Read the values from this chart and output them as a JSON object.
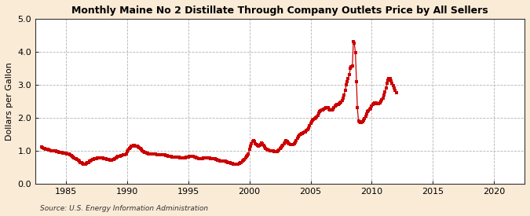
{
  "title": "Monthly Maine No 2 Distillate Through Company Outlets Price by All Sellers",
  "ylabel": "Dollars per Gallon",
  "source": "Source: U.S. Energy Information Administration",
  "bg_outer": "#faebd7",
  "bg_inner": "#ffffff",
  "line_color": "#cc0000",
  "xlim": [
    1982.5,
    2022.5
  ],
  "ylim": [
    0.0,
    5.0
  ],
  "yticks": [
    0.0,
    1.0,
    2.0,
    3.0,
    4.0,
    5.0
  ],
  "xticks": [
    1985,
    1990,
    1995,
    2000,
    2005,
    2010,
    2015,
    2020
  ],
  "data": [
    [
      1983.0,
      1.12
    ],
    [
      1983.08,
      1.1
    ],
    [
      1983.17,
      1.08
    ],
    [
      1983.25,
      1.06
    ],
    [
      1983.33,
      1.05
    ],
    [
      1983.42,
      1.04
    ],
    [
      1983.5,
      1.04
    ],
    [
      1983.58,
      1.03
    ],
    [
      1983.67,
      1.02
    ],
    [
      1983.75,
      1.01
    ],
    [
      1983.83,
      1.0
    ],
    [
      1983.92,
      1.0
    ],
    [
      1984.0,
      1.0
    ],
    [
      1984.08,
      1.0
    ],
    [
      1984.17,
      0.99
    ],
    [
      1984.25,
      0.98
    ],
    [
      1984.33,
      0.97
    ],
    [
      1984.42,
      0.96
    ],
    [
      1984.5,
      0.95
    ],
    [
      1984.58,
      0.95
    ],
    [
      1984.67,
      0.94
    ],
    [
      1984.75,
      0.93
    ],
    [
      1984.83,
      0.93
    ],
    [
      1984.92,
      0.92
    ],
    [
      1985.0,
      0.92
    ],
    [
      1985.08,
      0.91
    ],
    [
      1985.17,
      0.91
    ],
    [
      1985.25,
      0.9
    ],
    [
      1985.33,
      0.88
    ],
    [
      1985.42,
      0.86
    ],
    [
      1985.5,
      0.83
    ],
    [
      1985.58,
      0.81
    ],
    [
      1985.67,
      0.79
    ],
    [
      1985.75,
      0.77
    ],
    [
      1985.83,
      0.75
    ],
    [
      1985.92,
      0.73
    ],
    [
      1986.0,
      0.71
    ],
    [
      1986.08,
      0.68
    ],
    [
      1986.17,
      0.65
    ],
    [
      1986.25,
      0.63
    ],
    [
      1986.33,
      0.61
    ],
    [
      1986.42,
      0.6
    ],
    [
      1986.5,
      0.6
    ],
    [
      1986.58,
      0.6
    ],
    [
      1986.67,
      0.61
    ],
    [
      1986.75,
      0.63
    ],
    [
      1986.83,
      0.65
    ],
    [
      1986.92,
      0.68
    ],
    [
      1987.0,
      0.7
    ],
    [
      1987.08,
      0.72
    ],
    [
      1987.17,
      0.73
    ],
    [
      1987.25,
      0.74
    ],
    [
      1987.33,
      0.75
    ],
    [
      1987.42,
      0.76
    ],
    [
      1987.5,
      0.77
    ],
    [
      1987.58,
      0.78
    ],
    [
      1987.67,
      0.78
    ],
    [
      1987.75,
      0.78
    ],
    [
      1987.83,
      0.78
    ],
    [
      1987.92,
      0.78
    ],
    [
      1988.0,
      0.78
    ],
    [
      1988.08,
      0.77
    ],
    [
      1988.17,
      0.76
    ],
    [
      1988.25,
      0.75
    ],
    [
      1988.33,
      0.74
    ],
    [
      1988.42,
      0.73
    ],
    [
      1988.5,
      0.73
    ],
    [
      1988.58,
      0.72
    ],
    [
      1988.67,
      0.72
    ],
    [
      1988.75,
      0.72
    ],
    [
      1988.83,
      0.73
    ],
    [
      1988.92,
      0.74
    ],
    [
      1989.0,
      0.76
    ],
    [
      1989.08,
      0.78
    ],
    [
      1989.17,
      0.8
    ],
    [
      1989.25,
      0.82
    ],
    [
      1989.33,
      0.83
    ],
    [
      1989.42,
      0.84
    ],
    [
      1989.5,
      0.85
    ],
    [
      1989.58,
      0.86
    ],
    [
      1989.67,
      0.87
    ],
    [
      1989.75,
      0.88
    ],
    [
      1989.83,
      0.89
    ],
    [
      1989.92,
      0.91
    ],
    [
      1990.0,
      0.97
    ],
    [
      1990.08,
      1.02
    ],
    [
      1990.17,
      1.07
    ],
    [
      1990.25,
      1.1
    ],
    [
      1990.33,
      1.13
    ],
    [
      1990.42,
      1.15
    ],
    [
      1990.5,
      1.16
    ],
    [
      1990.58,
      1.16
    ],
    [
      1990.67,
      1.15
    ],
    [
      1990.75,
      1.14
    ],
    [
      1990.83,
      1.13
    ],
    [
      1990.92,
      1.12
    ],
    [
      1991.0,
      1.1
    ],
    [
      1991.08,
      1.07
    ],
    [
      1991.17,
      1.04
    ],
    [
      1991.25,
      1.01
    ],
    [
      1991.33,
      0.98
    ],
    [
      1991.42,
      0.96
    ],
    [
      1991.5,
      0.94
    ],
    [
      1991.58,
      0.93
    ],
    [
      1991.67,
      0.92
    ],
    [
      1991.75,
      0.91
    ],
    [
      1991.83,
      0.91
    ],
    [
      1991.92,
      0.91
    ],
    [
      1992.0,
      0.91
    ],
    [
      1992.08,
      0.91
    ],
    [
      1992.17,
      0.91
    ],
    [
      1992.25,
      0.91
    ],
    [
      1992.33,
      0.9
    ],
    [
      1992.42,
      0.89
    ],
    [
      1992.5,
      0.89
    ],
    [
      1992.58,
      0.88
    ],
    [
      1992.67,
      0.88
    ],
    [
      1992.75,
      0.88
    ],
    [
      1992.83,
      0.88
    ],
    [
      1992.92,
      0.88
    ],
    [
      1993.0,
      0.88
    ],
    [
      1993.08,
      0.87
    ],
    [
      1993.17,
      0.86
    ],
    [
      1993.25,
      0.85
    ],
    [
      1993.33,
      0.84
    ],
    [
      1993.42,
      0.83
    ],
    [
      1993.5,
      0.82
    ],
    [
      1993.58,
      0.82
    ],
    [
      1993.67,
      0.81
    ],
    [
      1993.75,
      0.81
    ],
    [
      1993.83,
      0.81
    ],
    [
      1993.92,
      0.81
    ],
    [
      1994.0,
      0.81
    ],
    [
      1994.08,
      0.8
    ],
    [
      1994.17,
      0.8
    ],
    [
      1994.25,
      0.8
    ],
    [
      1994.33,
      0.79
    ],
    [
      1994.42,
      0.79
    ],
    [
      1994.5,
      0.79
    ],
    [
      1994.58,
      0.79
    ],
    [
      1994.67,
      0.79
    ],
    [
      1994.75,
      0.79
    ],
    [
      1994.83,
      0.8
    ],
    [
      1994.92,
      0.8
    ],
    [
      1995.0,
      0.81
    ],
    [
      1995.08,
      0.82
    ],
    [
      1995.17,
      0.83
    ],
    [
      1995.25,
      0.83
    ],
    [
      1995.33,
      0.83
    ],
    [
      1995.42,
      0.82
    ],
    [
      1995.5,
      0.81
    ],
    [
      1995.58,
      0.8
    ],
    [
      1995.67,
      0.79
    ],
    [
      1995.75,
      0.78
    ],
    [
      1995.83,
      0.77
    ],
    [
      1995.92,
      0.76
    ],
    [
      1996.0,
      0.76
    ],
    [
      1996.08,
      0.76
    ],
    [
      1996.17,
      0.77
    ],
    [
      1996.25,
      0.78
    ],
    [
      1996.33,
      0.79
    ],
    [
      1996.42,
      0.79
    ],
    [
      1996.5,
      0.79
    ],
    [
      1996.58,
      0.79
    ],
    [
      1996.67,
      0.79
    ],
    [
      1996.75,
      0.78
    ],
    [
      1996.83,
      0.77
    ],
    [
      1996.92,
      0.76
    ],
    [
      1997.0,
      0.76
    ],
    [
      1997.08,
      0.75
    ],
    [
      1997.17,
      0.75
    ],
    [
      1997.25,
      0.74
    ],
    [
      1997.33,
      0.73
    ],
    [
      1997.42,
      0.72
    ],
    [
      1997.5,
      0.71
    ],
    [
      1997.58,
      0.7
    ],
    [
      1997.67,
      0.7
    ],
    [
      1997.75,
      0.69
    ],
    [
      1997.83,
      0.69
    ],
    [
      1997.92,
      0.69
    ],
    [
      1998.0,
      0.68
    ],
    [
      1998.08,
      0.67
    ],
    [
      1998.17,
      0.66
    ],
    [
      1998.25,
      0.65
    ],
    [
      1998.33,
      0.64
    ],
    [
      1998.42,
      0.63
    ],
    [
      1998.5,
      0.62
    ],
    [
      1998.58,
      0.61
    ],
    [
      1998.67,
      0.6
    ],
    [
      1998.75,
      0.6
    ],
    [
      1998.83,
      0.6
    ],
    [
      1998.92,
      0.6
    ],
    [
      1999.0,
      0.6
    ],
    [
      1999.08,
      0.6
    ],
    [
      1999.17,
      0.61
    ],
    [
      1999.25,
      0.63
    ],
    [
      1999.33,
      0.65
    ],
    [
      1999.42,
      0.68
    ],
    [
      1999.5,
      0.71
    ],
    [
      1999.58,
      0.74
    ],
    [
      1999.67,
      0.78
    ],
    [
      1999.75,
      0.82
    ],
    [
      1999.83,
      0.86
    ],
    [
      1999.92,
      0.9
    ],
    [
      2000.0,
      1.04
    ],
    [
      2000.08,
      1.13
    ],
    [
      2000.17,
      1.22
    ],
    [
      2000.25,
      1.28
    ],
    [
      2000.33,
      1.3
    ],
    [
      2000.42,
      1.28
    ],
    [
      2000.5,
      1.22
    ],
    [
      2000.58,
      1.18
    ],
    [
      2000.67,
      1.16
    ],
    [
      2000.75,
      1.15
    ],
    [
      2000.83,
      1.16
    ],
    [
      2000.92,
      1.2
    ],
    [
      2001.0,
      1.24
    ],
    [
      2001.08,
      1.21
    ],
    [
      2001.17,
      1.17
    ],
    [
      2001.25,
      1.12
    ],
    [
      2001.33,
      1.08
    ],
    [
      2001.42,
      1.05
    ],
    [
      2001.5,
      1.03
    ],
    [
      2001.58,
      1.02
    ],
    [
      2001.67,
      1.01
    ],
    [
      2001.75,
      1.01
    ],
    [
      2001.83,
      1.0
    ],
    [
      2001.92,
      0.99
    ],
    [
      2002.0,
      0.98
    ],
    [
      2002.08,
      0.97
    ],
    [
      2002.17,
      0.97
    ],
    [
      2002.25,
      0.98
    ],
    [
      2002.33,
      1.0
    ],
    [
      2002.42,
      1.03
    ],
    [
      2002.5,
      1.06
    ],
    [
      2002.58,
      1.09
    ],
    [
      2002.67,
      1.13
    ],
    [
      2002.75,
      1.17
    ],
    [
      2002.83,
      1.21
    ],
    [
      2002.92,
      1.26
    ],
    [
      2003.0,
      1.31
    ],
    [
      2003.08,
      1.28
    ],
    [
      2003.17,
      1.24
    ],
    [
      2003.25,
      1.21
    ],
    [
      2003.33,
      1.19
    ],
    [
      2003.42,
      1.18
    ],
    [
      2003.5,
      1.18
    ],
    [
      2003.58,
      1.19
    ],
    [
      2003.67,
      1.22
    ],
    [
      2003.75,
      1.26
    ],
    [
      2003.83,
      1.31
    ],
    [
      2003.92,
      1.37
    ],
    [
      2004.0,
      1.43
    ],
    [
      2004.08,
      1.47
    ],
    [
      2004.17,
      1.5
    ],
    [
      2004.25,
      1.52
    ],
    [
      2004.33,
      1.53
    ],
    [
      2004.42,
      1.54
    ],
    [
      2004.5,
      1.56
    ],
    [
      2004.58,
      1.58
    ],
    [
      2004.67,
      1.61
    ],
    [
      2004.75,
      1.65
    ],
    [
      2004.83,
      1.7
    ],
    [
      2004.92,
      1.76
    ],
    [
      2005.0,
      1.83
    ],
    [
      2005.08,
      1.88
    ],
    [
      2005.17,
      1.92
    ],
    [
      2005.25,
      1.95
    ],
    [
      2005.33,
      1.97
    ],
    [
      2005.42,
      1.99
    ],
    [
      2005.5,
      2.02
    ],
    [
      2005.58,
      2.08
    ],
    [
      2005.67,
      2.15
    ],
    [
      2005.75,
      2.2
    ],
    [
      2005.83,
      2.22
    ],
    [
      2005.92,
      2.23
    ],
    [
      2006.0,
      2.24
    ],
    [
      2006.08,
      2.26
    ],
    [
      2006.17,
      2.28
    ],
    [
      2006.25,
      2.3
    ],
    [
      2006.33,
      2.31
    ],
    [
      2006.42,
      2.3
    ],
    [
      2006.5,
      2.27
    ],
    [
      2006.58,
      2.24
    ],
    [
      2006.67,
      2.23
    ],
    [
      2006.75,
      2.24
    ],
    [
      2006.83,
      2.26
    ],
    [
      2006.92,
      2.3
    ],
    [
      2007.0,
      2.35
    ],
    [
      2007.08,
      2.38
    ],
    [
      2007.17,
      2.4
    ],
    [
      2007.25,
      2.41
    ],
    [
      2007.33,
      2.42
    ],
    [
      2007.42,
      2.44
    ],
    [
      2007.5,
      2.48
    ],
    [
      2007.58,
      2.53
    ],
    [
      2007.67,
      2.6
    ],
    [
      2007.75,
      2.7
    ],
    [
      2007.83,
      2.83
    ],
    [
      2007.92,
      3.0
    ],
    [
      2008.0,
      3.1
    ],
    [
      2008.08,
      3.2
    ],
    [
      2008.17,
      3.3
    ],
    [
      2008.25,
      3.5
    ],
    [
      2008.33,
      3.55
    ],
    [
      2008.42,
      3.58
    ],
    [
      2008.5,
      4.3
    ],
    [
      2008.58,
      4.25
    ],
    [
      2008.67,
      3.97
    ],
    [
      2008.75,
      3.1
    ],
    [
      2008.83,
      2.3
    ],
    [
      2008.92,
      1.9
    ],
    [
      2009.0,
      1.87
    ],
    [
      2009.08,
      1.85
    ],
    [
      2009.17,
      1.85
    ],
    [
      2009.25,
      1.88
    ],
    [
      2009.33,
      1.92
    ],
    [
      2009.42,
      1.97
    ],
    [
      2009.5,
      2.05
    ],
    [
      2009.58,
      2.12
    ],
    [
      2009.67,
      2.18
    ],
    [
      2009.75,
      2.22
    ],
    [
      2009.83,
      2.25
    ],
    [
      2009.92,
      2.28
    ],
    [
      2010.0,
      2.35
    ],
    [
      2010.08,
      2.4
    ],
    [
      2010.17,
      2.43
    ],
    [
      2010.25,
      2.44
    ],
    [
      2010.33,
      2.44
    ],
    [
      2010.42,
      2.43
    ],
    [
      2010.5,
      2.42
    ],
    [
      2010.58,
      2.43
    ],
    [
      2010.67,
      2.45
    ],
    [
      2010.75,
      2.5
    ],
    [
      2010.83,
      2.55
    ],
    [
      2010.92,
      2.6
    ],
    [
      2011.0,
      2.68
    ],
    [
      2011.08,
      2.78
    ],
    [
      2011.17,
      2.9
    ],
    [
      2011.25,
      3.05
    ],
    [
      2011.33,
      3.15
    ],
    [
      2011.42,
      3.2
    ],
    [
      2011.5,
      3.18
    ],
    [
      2011.58,
      3.12
    ],
    [
      2011.67,
      3.05
    ],
    [
      2011.75,
      2.98
    ],
    [
      2011.83,
      2.9
    ],
    [
      2011.92,
      2.82
    ],
    [
      2012.0,
      2.75
    ]
  ]
}
